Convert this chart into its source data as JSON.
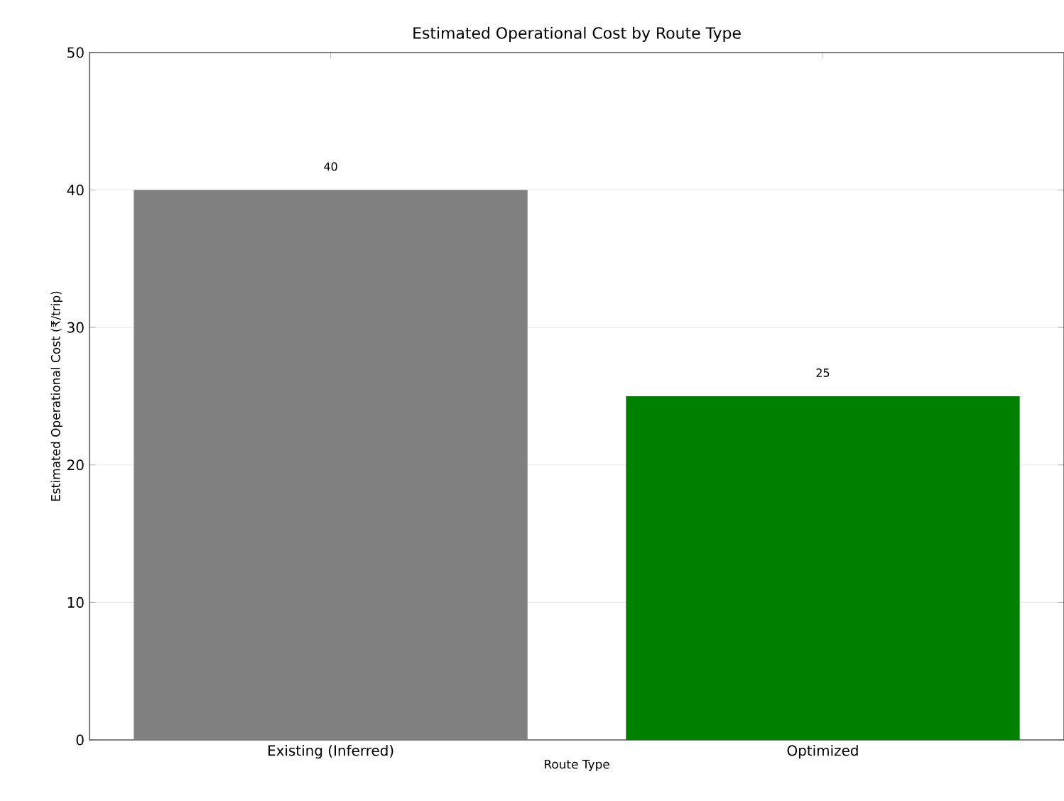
{
  "chart_data": {
    "type": "bar",
    "title": "Estimated Operational Cost by Route Type",
    "xlabel": "Route Type",
    "ylabel": "Estimated Operational Cost (₹/trip)",
    "categories": [
      "Existing (Inferred)",
      "Optimized"
    ],
    "values": [
      40,
      25
    ],
    "colors": [
      "#808080",
      "#008000"
    ],
    "ylim": [
      0,
      50
    ],
    "yticks": [
      0,
      10,
      20,
      30,
      40,
      50
    ],
    "grid": "y",
    "data_labels": true
  }
}
